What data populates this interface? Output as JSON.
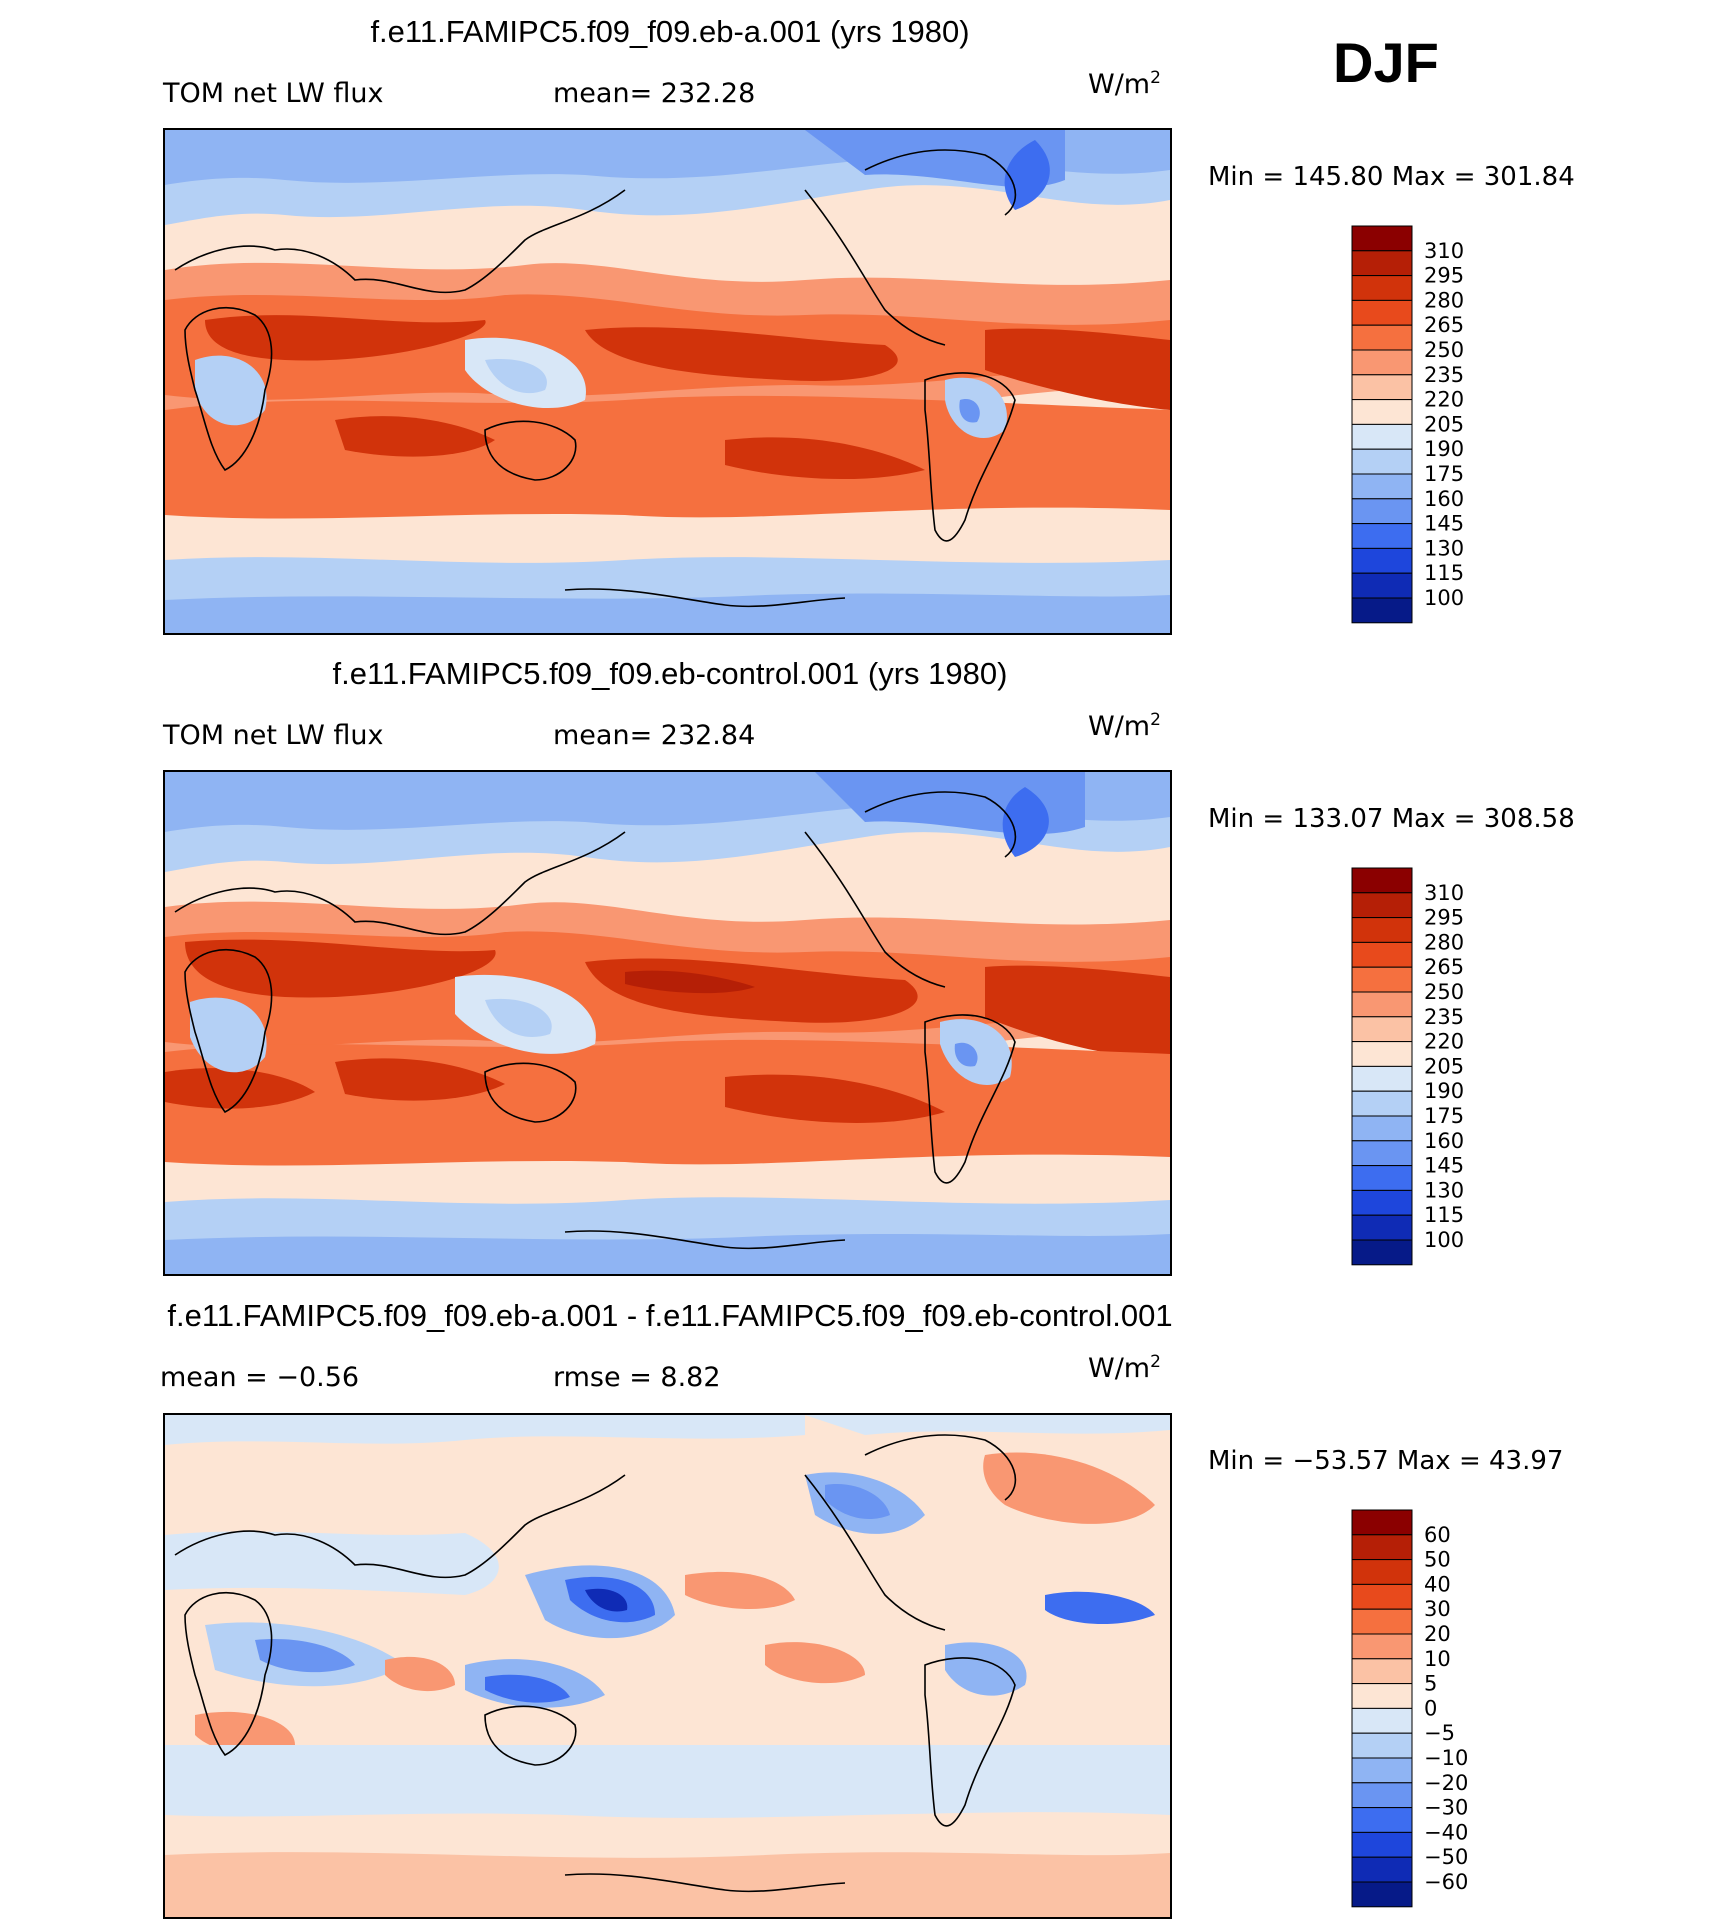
{
  "season": "DJF",
  "chart_data": [
    {
      "type": "heatmap",
      "title": "f.e11.FAMIPC5.f09_f09.eb-a.001 (yrs 1980)",
      "left_label": "TOM net LW flux",
      "stat_text": "mean= 232.28",
      "units": "W/m",
      "units_sup": "2",
      "minmax_text": "Min = 145.80 Max = 301.84",
      "mean": 232.28,
      "min": 145.8,
      "max": 301.84,
      "colorbar_levels": [
        "310",
        "295",
        "280",
        "265",
        "250",
        "235",
        "220",
        "205",
        "190",
        "175",
        "160",
        "145",
        "130",
        "115",
        "100"
      ],
      "colorbar_colors": [
        "#8b0000",
        "#b51f06",
        "#d1330b",
        "#e84a1c",
        "#f5703f",
        "#f99772",
        "#fbc2a5",
        "#fde5d4",
        "#d8e7f7",
        "#b4d0f5",
        "#8fb4f3",
        "#6a95f2",
        "#3d6df0",
        "#1e46dc",
        "#0f2bb5",
        "#061a88"
      ]
    },
    {
      "type": "heatmap",
      "title": "f.e11.FAMIPC5.f09_f09.eb-control.001 (yrs 1980)",
      "left_label": "TOM net LW flux",
      "stat_text": "mean= 232.84",
      "units": "W/m",
      "units_sup": "2",
      "minmax_text": "Min = 133.07 Max = 308.58",
      "mean": 232.84,
      "min": 133.07,
      "max": 308.58,
      "colorbar_levels": [
        "310",
        "295",
        "280",
        "265",
        "250",
        "235",
        "220",
        "205",
        "190",
        "175",
        "160",
        "145",
        "130",
        "115",
        "100"
      ],
      "colorbar_colors": [
        "#8b0000",
        "#b51f06",
        "#d1330b",
        "#e84a1c",
        "#f5703f",
        "#f99772",
        "#fbc2a5",
        "#fde5d4",
        "#d8e7f7",
        "#b4d0f5",
        "#8fb4f3",
        "#6a95f2",
        "#3d6df0",
        "#1e46dc",
        "#0f2bb5",
        "#061a88"
      ]
    },
    {
      "type": "heatmap",
      "title": "f.e11.FAMIPC5.f09_f09.eb-a.001 - f.e11.FAMIPC5.f09_f09.eb-control.001",
      "left_label": "mean =   −0.56",
      "stat_text": "rmse =    8.82",
      "units": "W/m",
      "units_sup": "2",
      "minmax_text": "Min = −53.57 Max =  43.97",
      "mean": -0.56,
      "rmse": 8.82,
      "min": -53.57,
      "max": 43.97,
      "colorbar_levels": [
        "60",
        "50",
        "40",
        "30",
        "20",
        "10",
        "5",
        "0",
        "−5",
        "−10",
        "−20",
        "−30",
        "−40",
        "−50",
        "−60"
      ],
      "colorbar_colors": [
        "#8b0000",
        "#b51f06",
        "#d1330b",
        "#e84a1c",
        "#f5703f",
        "#f99772",
        "#fbc2a5",
        "#fde5d4",
        "#d8e7f7",
        "#b4d0f5",
        "#8fb4f3",
        "#6a95f2",
        "#3d6df0",
        "#1e46dc",
        "#0f2bb5",
        "#061a88"
      ]
    }
  ]
}
